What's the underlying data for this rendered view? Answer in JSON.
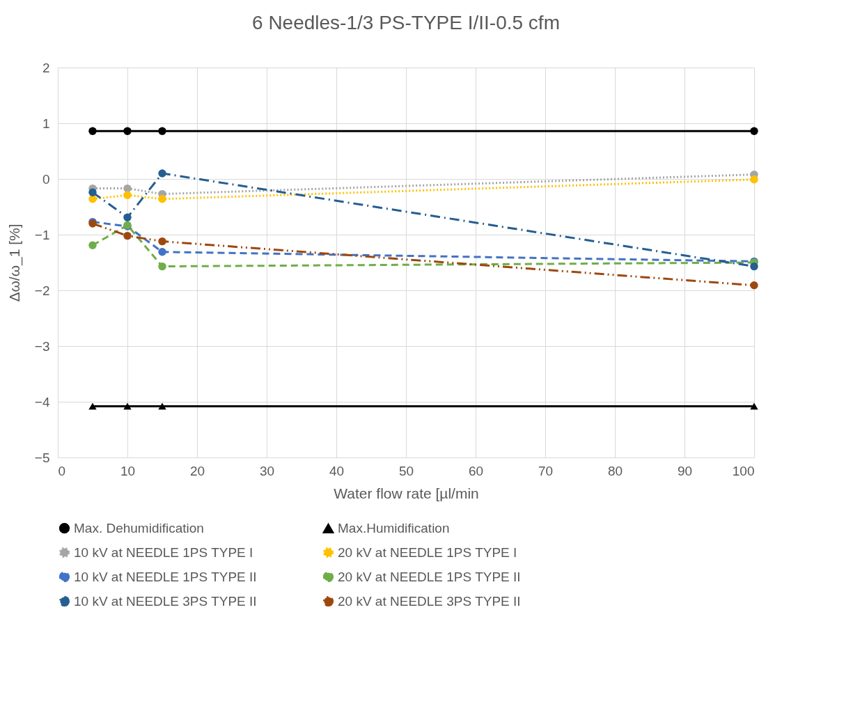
{
  "chart_data": {
    "type": "line",
    "title": "6 Needles-1/3 PS-TYPE I/II-0.5 cfm",
    "xlabel": "Water flow rate [µl/min",
    "ylabel": "Δω/ω_1 [%]",
    "x": [
      5,
      10,
      15,
      100
    ],
    "xlim": [
      0,
      100
    ],
    "xticks": [
      0,
      10,
      20,
      30,
      40,
      50,
      60,
      70,
      80,
      90,
      100
    ],
    "ylim": [
      -5,
      2
    ],
    "yticks": [
      -5,
      -4,
      -3,
      -2,
      -1,
      0,
      1,
      2
    ],
    "grid": true,
    "legend": "bottom",
    "series": [
      {
        "name": "Max. Dehumidification",
        "color": "#000000",
        "marker": "circle",
        "line_style": "solid",
        "values": [
          0.86,
          0.86,
          0.86,
          0.86
        ]
      },
      {
        "name": "Max.Humidification",
        "color": "#000000",
        "marker": "triangle",
        "line_style": "solid",
        "values": [
          -4.08,
          -4.08,
          -4.08,
          -4.08
        ]
      },
      {
        "name": "10 kV at NEEDLE 1PS TYPE I",
        "color": "#a5a5a5",
        "marker": "circle",
        "line_style": "dotted",
        "values": [
          -0.17,
          -0.17,
          -0.27,
          0.08
        ]
      },
      {
        "name": "20 kV at NEEDLE 1PS TYPE I",
        "color": "#ffc000",
        "marker": "circle",
        "line_style": "dotted",
        "values": [
          -0.36,
          -0.29,
          -0.36,
          -0.01
        ]
      },
      {
        "name": "10 kV at NEEDLE 1PS TYPE II",
        "color": "#4472c4",
        "marker": "circle",
        "line_style": "dashed",
        "values": [
          -0.77,
          -0.85,
          -1.31,
          -1.48
        ]
      },
      {
        "name": "20 kV at NEEDLE 1PS TYPE II",
        "color": "#70ad47",
        "marker": "circle",
        "line_style": "dashed",
        "values": [
          -1.19,
          -0.83,
          -1.57,
          -1.5
        ]
      },
      {
        "name": "10 kV at NEEDLE 3PS TYPE II",
        "color": "#255e91",
        "marker": "circle",
        "line_style": "dashdot",
        "values": [
          -0.24,
          -0.69,
          0.1,
          -1.57
        ]
      },
      {
        "name": "20 kV at NEEDLE 3PS TYPE II",
        "color": "#9e480e",
        "marker": "circle",
        "line_style": "dashdotdot",
        "values": [
          -0.8,
          -1.02,
          -1.12,
          -1.91
        ]
      }
    ]
  }
}
